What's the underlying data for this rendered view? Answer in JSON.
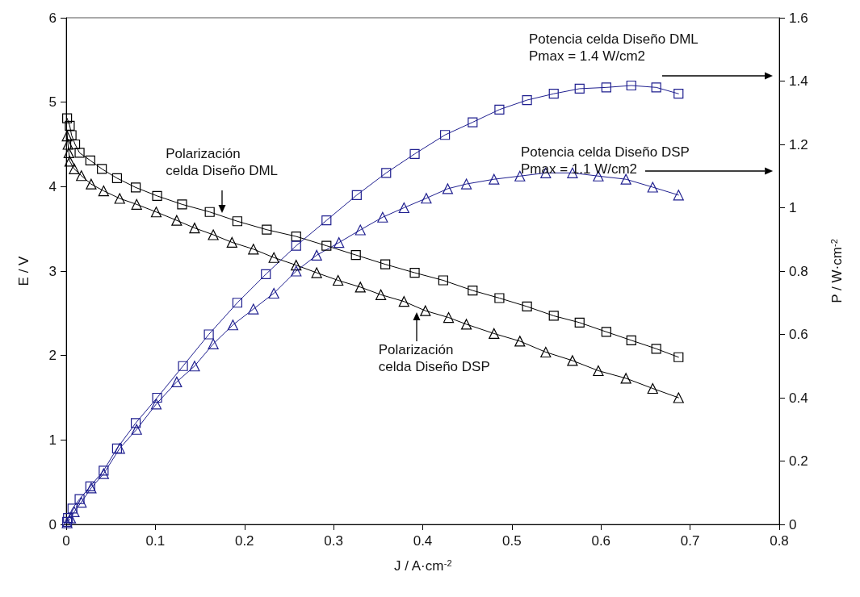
{
  "chart_data": {
    "type": "line",
    "xlabel": "J / A·cm$^{-2}$",
    "ylabel": "E / V",
    "y2label": "P / W·cm$^{-2}$",
    "xlim": [
      0,
      0.8
    ],
    "xticks": [
      0,
      0.1,
      0.2,
      0.3,
      0.4,
      0.5,
      0.6,
      0.7,
      0.8
    ],
    "ylim": [
      0,
      6
    ],
    "yticks": [
      0,
      1,
      2,
      3,
      4,
      5,
      6
    ],
    "y2lim": [
      0,
      1.6
    ],
    "y2ticks": [
      0,
      0.2,
      0.4,
      0.6,
      0.8,
      1,
      1.2,
      1.4,
      1.6
    ],
    "grid": false,
    "line_style": "solid",
    "series": [
      {
        "color": "#000000",
        "marker": "square",
        "x": [
          0.001,
          0.004,
          0.006,
          0.01,
          0.015,
          0.027,
          0.04,
          0.057,
          0.078,
          0.102,
          0.13,
          0.161,
          0.192,
          0.225,
          0.258,
          0.292,
          0.325,
          0.358,
          0.391,
          0.423,
          0.456,
          0.486,
          0.517,
          0.547,
          0.576,
          0.606,
          0.634,
          0.662,
          0.687
        ],
        "values": [
          4.81,
          4.72,
          4.61,
          4.5,
          4.4,
          4.31,
          4.21,
          4.1,
          3.99,
          3.89,
          3.79,
          3.7,
          3.59,
          3.49,
          3.41,
          3.3,
          3.19,
          3.08,
          2.98,
          2.89,
          2.77,
          2.68,
          2.58,
          2.47,
          2.39,
          2.28,
          2.18,
          2.08,
          1.98
        ]
      },
      {
        "color": "#000000",
        "marker": "triangle",
        "x": [
          0.001,
          0.002,
          0.003,
          0.004,
          0.009,
          0.017,
          0.028,
          0.042,
          0.06,
          0.079,
          0.101,
          0.124,
          0.144,
          0.165,
          0.186,
          0.21,
          0.233,
          0.258,
          0.281,
          0.305,
          0.33,
          0.353,
          0.379,
          0.403,
          0.429,
          0.449,
          0.48,
          0.509,
          0.538,
          0.568,
          0.597,
          0.628,
          0.658,
          0.687
        ],
        "values": [
          4.6,
          4.5,
          4.4,
          4.3,
          4.21,
          4.13,
          4.03,
          3.95,
          3.86,
          3.79,
          3.7,
          3.6,
          3.51,
          3.43,
          3.34,
          3.26,
          3.16,
          3.07,
          2.98,
          2.89,
          2.81,
          2.72,
          2.64,
          2.53,
          2.45,
          2.37,
          2.26,
          2.17,
          2.04,
          1.94,
          1.82,
          1.73,
          1.61,
          1.5
        ]
      },
      {
        "color": "#1f1f8f",
        "marker": "square",
        "axis": "y2",
        "x": [
          0.001,
          0.002,
          0.007,
          0.015,
          0.027,
          0.042,
          0.057,
          0.078,
          0.102,
          0.131,
          0.16,
          0.192,
          0.224,
          0.258,
          0.292,
          0.326,
          0.359,
          0.391,
          0.425,
          0.456,
          0.486,
          0.517,
          0.547,
          0.576,
          0.606,
          0.634,
          0.662,
          0.687
        ],
        "values": [
          0.008,
          0.02,
          0.05,
          0.08,
          0.12,
          0.17,
          0.24,
          0.32,
          0.4,
          0.5,
          0.6,
          0.7,
          0.79,
          0.88,
          0.96,
          1.04,
          1.11,
          1.17,
          1.23,
          1.27,
          1.31,
          1.34,
          1.36,
          1.376,
          1.38,
          1.386,
          1.38,
          1.36
        ]
      },
      {
        "color": "#1f1f8f",
        "marker": "triangle",
        "axis": "y2",
        "x": [
          0.001,
          0.005,
          0.009,
          0.017,
          0.028,
          0.042,
          0.06,
          0.079,
          0.101,
          0.124,
          0.144,
          0.165,
          0.187,
          0.21,
          0.233,
          0.258,
          0.281,
          0.306,
          0.33,
          0.355,
          0.379,
          0.404,
          0.428,
          0.449,
          0.48,
          0.509,
          0.538,
          0.568,
          0.597,
          0.628,
          0.658,
          0.687
        ],
        "values": [
          0.005,
          0.02,
          0.04,
          0.07,
          0.115,
          0.16,
          0.24,
          0.3,
          0.38,
          0.45,
          0.5,
          0.57,
          0.63,
          0.68,
          0.73,
          0.8,
          0.85,
          0.89,
          0.93,
          0.97,
          1.0,
          1.03,
          1.06,
          1.075,
          1.09,
          1.1,
          1.11,
          1.11,
          1.1,
          1.09,
          1.065,
          1.04
        ]
      }
    ],
    "annotations": [
      {
        "text": "Polarización\ncelda Diseño DML",
        "x": 0.175,
        "y": 3.65
      },
      {
        "text": "Polarización\ncelda Diseño DSP",
        "x": 0.393,
        "y": 2.55
      },
      "Potencia celda Diseño DML\nPmax = 1.4 W/cm2",
      "Potencia celda Diseño DSP\nPmax = 1.1 W/cm2"
    ]
  }
}
